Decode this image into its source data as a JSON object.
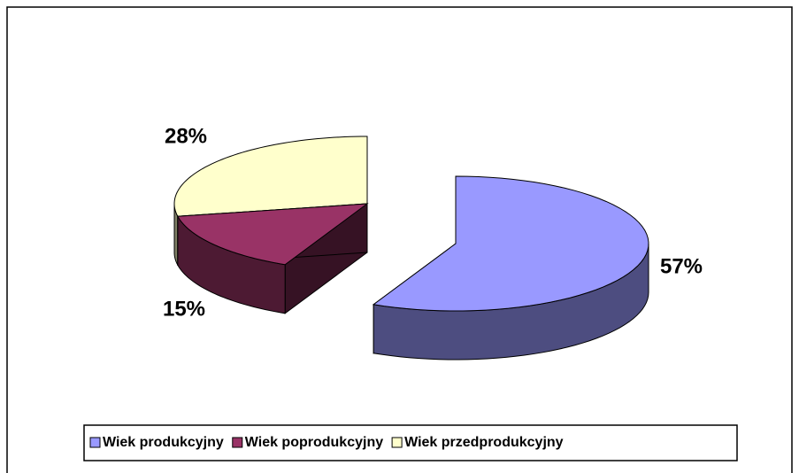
{
  "chart_data": {
    "type": "pie",
    "categories": [
      "Wiek produkcyjny",
      "Wiek poprodukcyjny",
      "Wiek przedprodukcyjny"
    ],
    "values": [
      57,
      15,
      28
    ],
    "value_labels": [
      "57%",
      "15%",
      "28%"
    ],
    "colors": [
      "#9999ff",
      "#993366",
      "#ffffcc"
    ],
    "legend": "bottom"
  }
}
